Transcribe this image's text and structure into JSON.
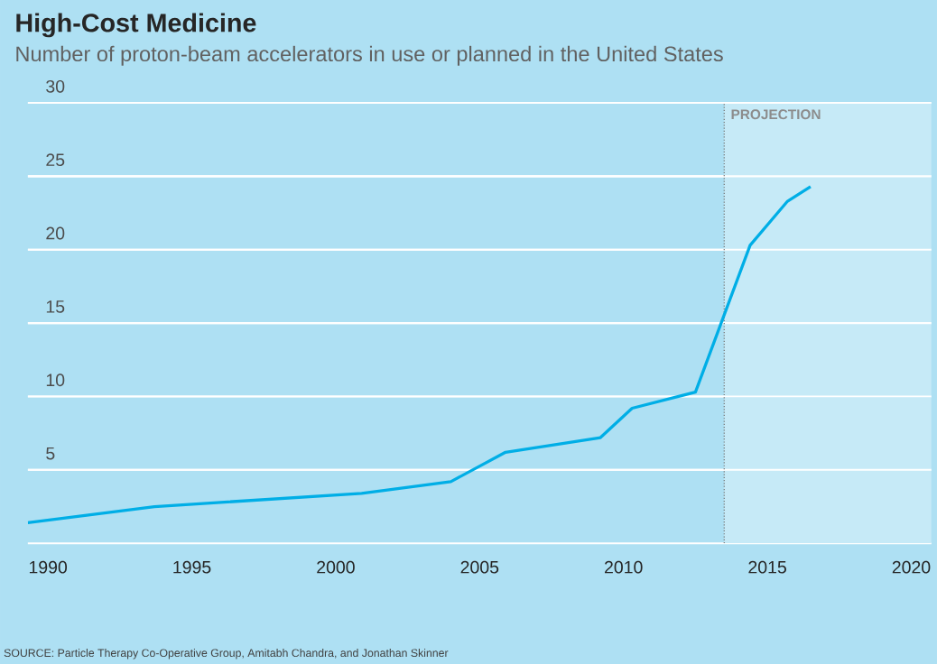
{
  "chart_data": {
    "type": "line",
    "title": "High-Cost Medicine",
    "subtitle": "Number of proton-beam accelerators in use or planned in the United States",
    "x": [
      1989.3,
      1993.7,
      2000.9,
      2004.0,
      2005.9,
      2009.2,
      2010.3,
      2012.5,
      2014.4,
      2015.7,
      2016.5
    ],
    "series": [
      {
        "color": "#00aee6",
        "values": [
          1.4,
          2.5,
          3.4,
          4.2,
          6.2,
          7.2,
          9.2,
          10.3,
          20.3,
          23.3,
          24.3
        ]
      }
    ],
    "xlim": [
      1989.3,
      2020.7
    ],
    "ylim": [
      0,
      30
    ],
    "xticks": [
      1990,
      1995,
      2000,
      2005,
      2010,
      2015,
      2020
    ],
    "yticks": [
      5,
      10,
      15,
      20,
      25,
      30
    ],
    "grid": "y",
    "marker": "none",
    "line_style": "solid",
    "ref_lines": [
      {
        "axis": "x",
        "value": 2013.5,
        "line_style": "dotted",
        "color": "#737373"
      }
    ],
    "bands": [
      {
        "axis": "x",
        "from": 2013.5,
        "to": 2020.7,
        "label": "PROJECTION",
        "color": "#c6eaf7"
      }
    ],
    "annotations": [
      "SOURCE: Particle Therapy Co-Operative Group, Amitabh Chandra, and Jonathan Skinner"
    ]
  }
}
